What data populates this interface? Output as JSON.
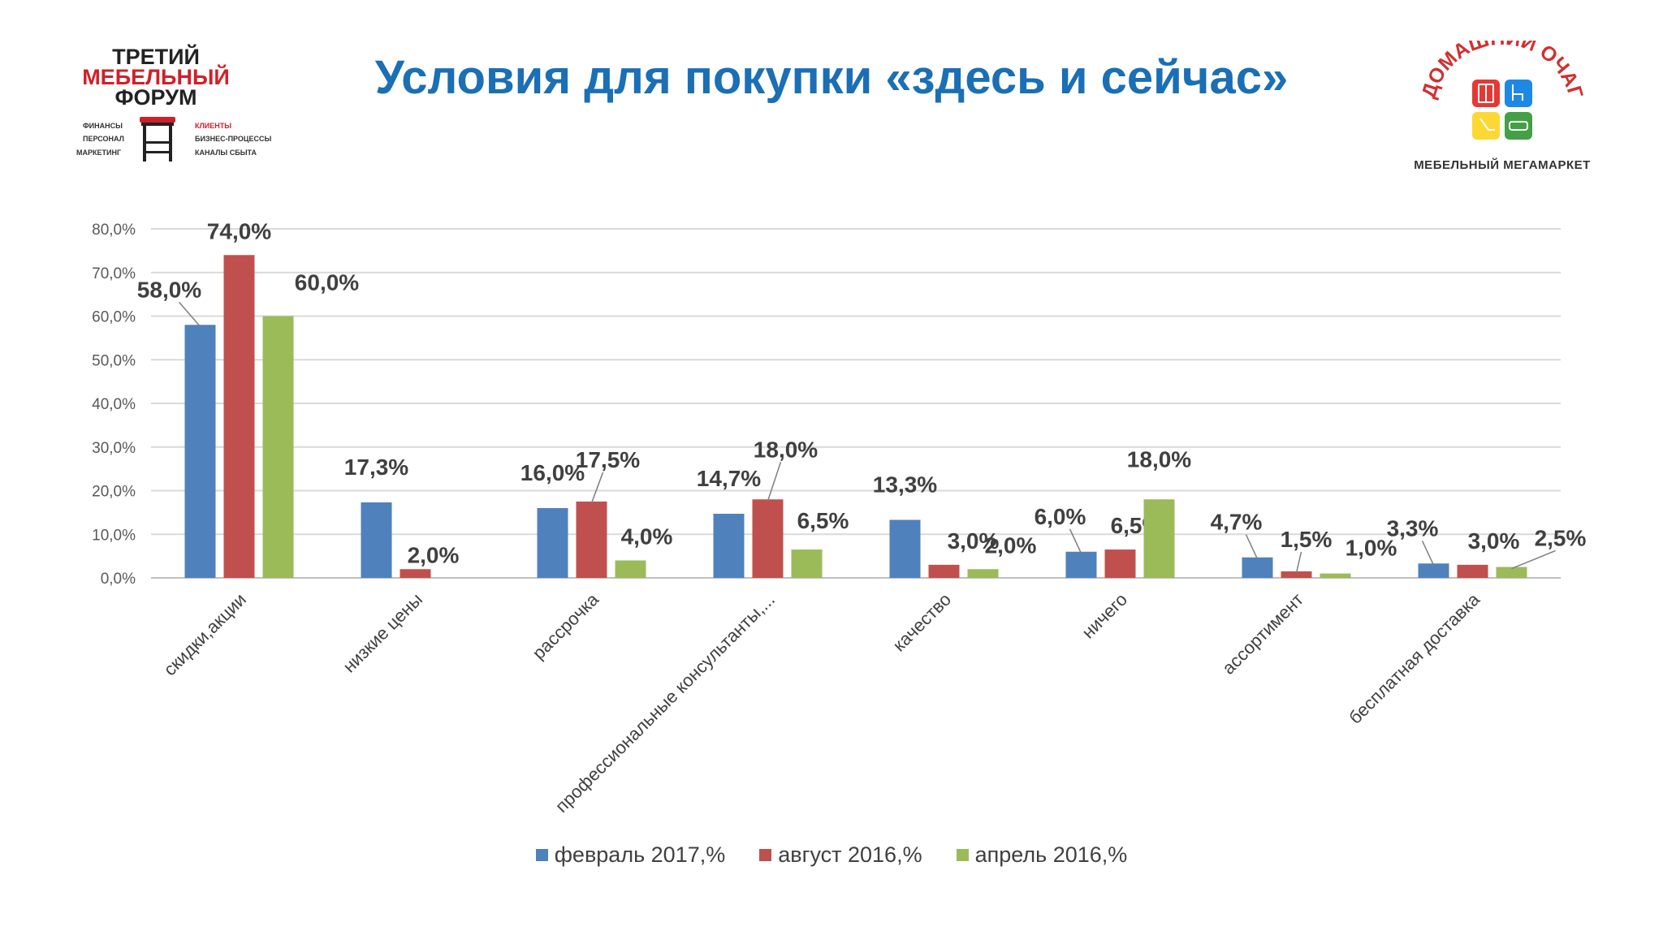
{
  "slide": {
    "title": "Условия для покупки «здесь и сейчас»"
  },
  "forum_logo": {
    "line1": "ТРЕТИЙ",
    "line2": "МЕБЕЛЬНЫЙ",
    "line3": "ФОРУМ",
    "left_items": [
      "ФИНАНСЫ",
      "ПЕРСОНАЛ",
      "МАРКЕТИНГ"
    ],
    "right_items": [
      "КЛИЕНТЫ",
      "БИЗНЕС-ПРОЦЕССЫ",
      "КАНАЛЫ СБЫТА"
    ],
    "colors": {
      "dark": "#222222",
      "red": "#d0202a"
    }
  },
  "store_logo": {
    "arc_text": "ДОМАШНИЙ ОЧАГ",
    "subtitle": "МЕБЕЛЬНЫЙ МЕГАМАРКЕТ",
    "tile_colors": [
      "#e53935",
      "#1e88e5",
      "#fdd835",
      "#43a047"
    ],
    "tile_icons": [
      "wardrobe-icon",
      "chair-icon",
      "lamp-icon",
      "sofa-icon"
    ]
  },
  "chart_data": {
    "type": "bar",
    "categories": [
      "скидки,акции",
      "низкие цены",
      "рассрочка",
      "профессиональные консультанты,...",
      "качество",
      "ничего",
      "ассортимент",
      "бесплатная доставка"
    ],
    "series": [
      {
        "name": "февраль 2017,%",
        "color": "#4f81bd",
        "values": [
          58.0,
          17.3,
          16.0,
          14.7,
          13.3,
          6.0,
          4.7,
          3.3
        ],
        "labels": [
          "58,0%",
          "17,3%",
          "16,0%",
          "14,7%",
          "13,3%",
          "6,0%",
          "4,7%",
          "3,3%"
        ]
      },
      {
        "name": "август 2016,%",
        "color": "#c0504d",
        "values": [
          74.0,
          2.0,
          17.5,
          18.0,
          3.0,
          6.5,
          1.5,
          3.0
        ],
        "labels": [
          "74,0%",
          "2,0%",
          "17,5%",
          "18,0%",
          "3,0%",
          "6,5%",
          "1,5%",
          "3,0%"
        ]
      },
      {
        "name": "апрель 2016,%",
        "color": "#9bbb59",
        "values": [
          60.0,
          null,
          4.0,
          6.5,
          2.0,
          18.0,
          1.0,
          2.5
        ],
        "labels": [
          "60,0%",
          "",
          "4,0%",
          "6,5%",
          "2,0%",
          "18,0%",
          "1,0%",
          "2,5%"
        ]
      }
    ],
    "yticks": [
      "0,0%",
      "10,0%",
      "20,0%",
      "30,0%",
      "40,0%",
      "50,0%",
      "60,0%",
      "70,0%",
      "80,0%"
    ],
    "ylim": [
      0,
      80
    ],
    "grid": true,
    "legend": "bottom",
    "xlabel": "",
    "ylabel": ""
  }
}
